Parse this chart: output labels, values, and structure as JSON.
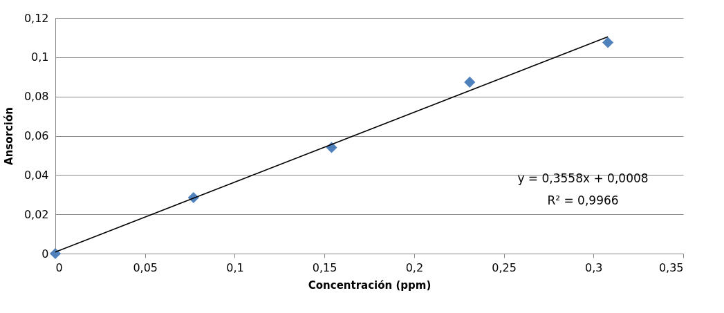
{
  "chart_data": {
    "type": "scatter",
    "xlabel": "Concentración (ppm)",
    "ylabel": "Ansorción",
    "x": [
      0,
      0.077,
      0.154,
      0.231,
      0.308
    ],
    "series": [
      {
        "color": "#4f81bd",
        "marker": "diamond",
        "values": [
          0,
          0.0285,
          0.054,
          0.0873,
          0.1075
        ]
      },
      {
        "type": "line",
        "color": "#000000",
        "marker": "none",
        "x": [
          0,
          0.308
        ],
        "values": [
          0.0008,
          0.1104
        ]
      }
    ],
    "xlim": [
      0,
      0.35
    ],
    "ylim": [
      0,
      0.12
    ],
    "xticks": [
      {
        "value": 0,
        "label": "0"
      },
      {
        "value": 0.05,
        "label": "0,05"
      },
      {
        "value": 0.1,
        "label": "0,1"
      },
      {
        "value": 0.15,
        "label": "0,15"
      },
      {
        "value": 0.2,
        "label": "0,2"
      },
      {
        "value": 0.25,
        "label": "0,25"
      },
      {
        "value": 0.3,
        "label": "0,3"
      },
      {
        "value": 0.35,
        "label": "0,35"
      }
    ],
    "yticks": [
      {
        "value": 0,
        "label": "0"
      },
      {
        "value": 0.02,
        "label": "0,02"
      },
      {
        "value": 0.04,
        "label": "0,04"
      },
      {
        "value": 0.06,
        "label": "0,06"
      },
      {
        "value": 0.08,
        "label": "0,08"
      },
      {
        "value": 0.1,
        "label": "0,1"
      },
      {
        "value": 0.12,
        "label": "0,12"
      }
    ],
    "annotations": [
      "y = 0,3558x + 0,0008",
      "R² = 0,9966"
    ],
    "grid": "y"
  }
}
